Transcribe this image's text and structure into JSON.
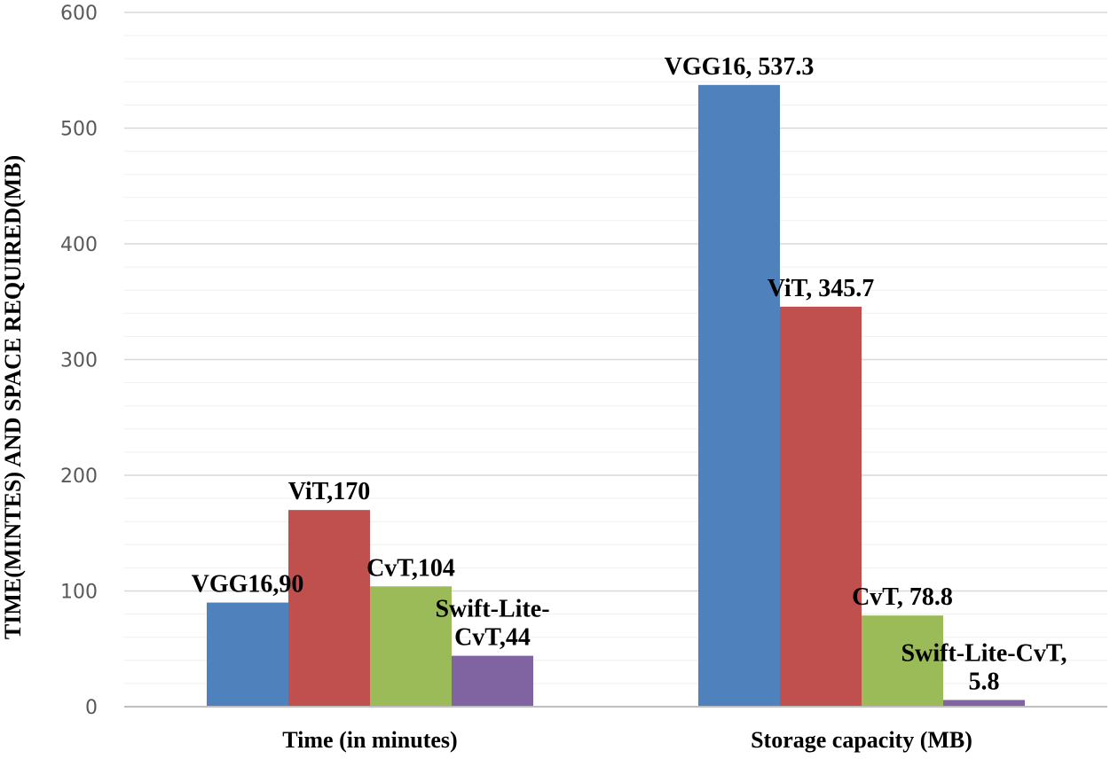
{
  "chart_data": {
    "type": "bar",
    "title": "",
    "xlabel": "",
    "ylabel": "TIME(MINTES) AND SPACE REQUIRED(MB)",
    "ylim": [
      0,
      600
    ],
    "yticks": [
      0,
      100,
      200,
      300,
      400,
      500,
      600
    ],
    "minor_grid_step": 20,
    "categories": [
      "Time (in minutes)",
      "Storage capacity  (MB)"
    ],
    "series": [
      {
        "name": "VGG16",
        "color": "#4F81BD",
        "values": [
          90,
          537.3
        ],
        "labels": [
          [
            "VGG16,90"
          ],
          [
            "VGG16, 537.3"
          ]
        ]
      },
      {
        "name": "ViT",
        "color": "#C0504D",
        "values": [
          170,
          345.7
        ],
        "labels": [
          [
            "ViT,170"
          ],
          [
            "ViT, 345.7"
          ]
        ]
      },
      {
        "name": "CvT",
        "color": "#9BBB59",
        "values": [
          104,
          78.8
        ],
        "labels": [
          [
            "CvT,104"
          ],
          [
            "CvT, 78.8"
          ]
        ]
      },
      {
        "name": "Swift-Lite-CvT",
        "color": "#8064A2",
        "values": [
          44,
          5.8
        ],
        "labels": [
          [
            "Swift-Lite-",
            "CvT,44"
          ],
          [
            "Swift-Lite-CvT,",
            "5.8"
          ]
        ]
      }
    ]
  }
}
